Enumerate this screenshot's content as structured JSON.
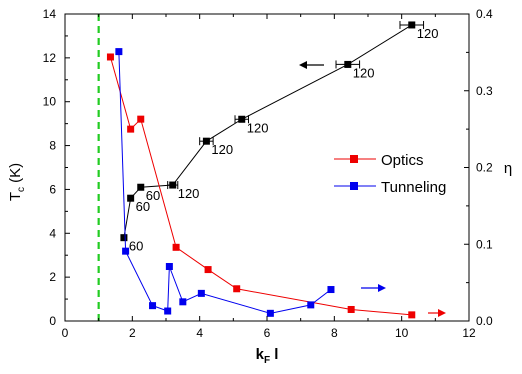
{
  "chart_data": {
    "type": "scatter",
    "xlabel": "k",
    "xlabel_sub1": "F",
    "xlabel_tail": " l",
    "ylabel_left": "T",
    "ylabel_left_sub": "c",
    "ylabel_left_tail": " (K)",
    "ylabel_right": "η",
    "xlim": [
      0,
      12
    ],
    "ylim_left": [
      0,
      14
    ],
    "ylim_right": [
      0,
      0.4
    ],
    "x_ticks": [
      0,
      2,
      4,
      6,
      8,
      10,
      12
    ],
    "y_left_ticks": [
      0,
      2,
      4,
      6,
      8,
      10,
      12,
      14
    ],
    "y_right_ticks": [
      0.0,
      0.1,
      0.2,
      0.3,
      0.4
    ],
    "x_tick_labels": [
      "0",
      "2",
      "4",
      "6",
      "8",
      "10",
      "12"
    ],
    "y_left_tick_labels": [
      "0",
      "2",
      "4",
      "6",
      "8",
      "10",
      "12",
      "14"
    ],
    "y_right_tick_labels": [
      "0.0",
      "0.1",
      "0.2",
      "0.3",
      "0.4"
    ],
    "vertical_line_x": 1.0,
    "legend_position": "center-right",
    "series": [
      {
        "axis": "left",
        "color": "#000000",
        "x": [
          1.75,
          1.95,
          2.25,
          3.2,
          4.2,
          5.25,
          8.4,
          10.3
        ],
        "y": [
          3.8,
          5.6,
          6.1,
          6.2,
          8.2,
          9.2,
          11.7,
          13.5
        ],
        "xerr": [
          0,
          0,
          0,
          0.15,
          0.2,
          0.2,
          0.35,
          0.35
        ],
        "point_labels": [
          "60",
          "60",
          "60",
          "120",
          "120",
          "120",
          "120",
          "120"
        ]
      },
      {
        "name": "Optics",
        "axis": "right",
        "color": "#ee0000",
        "x": [
          1.35,
          1.95,
          2.25,
          3.3,
          4.25,
          5.1,
          8.5,
          10.3
        ],
        "y": [
          0.344,
          0.25,
          0.263,
          0.096,
          0.067,
          0.042,
          0.015,
          0.008
        ]
      },
      {
        "name": "Tunneling",
        "axis": "right",
        "color": "#0000ee",
        "x": [
          1.6,
          1.8,
          2.6,
          3.05,
          3.1,
          3.5,
          4.05,
          6.1,
          7.3,
          7.9
        ],
        "y": [
          0.351,
          0.091,
          0.02,
          0.013,
          0.071,
          0.025,
          0.036,
          0.01,
          0.021,
          0.041
        ]
      }
    ]
  },
  "colors": {
    "vertical_line": "#22cc22",
    "axis": "#000000"
  }
}
